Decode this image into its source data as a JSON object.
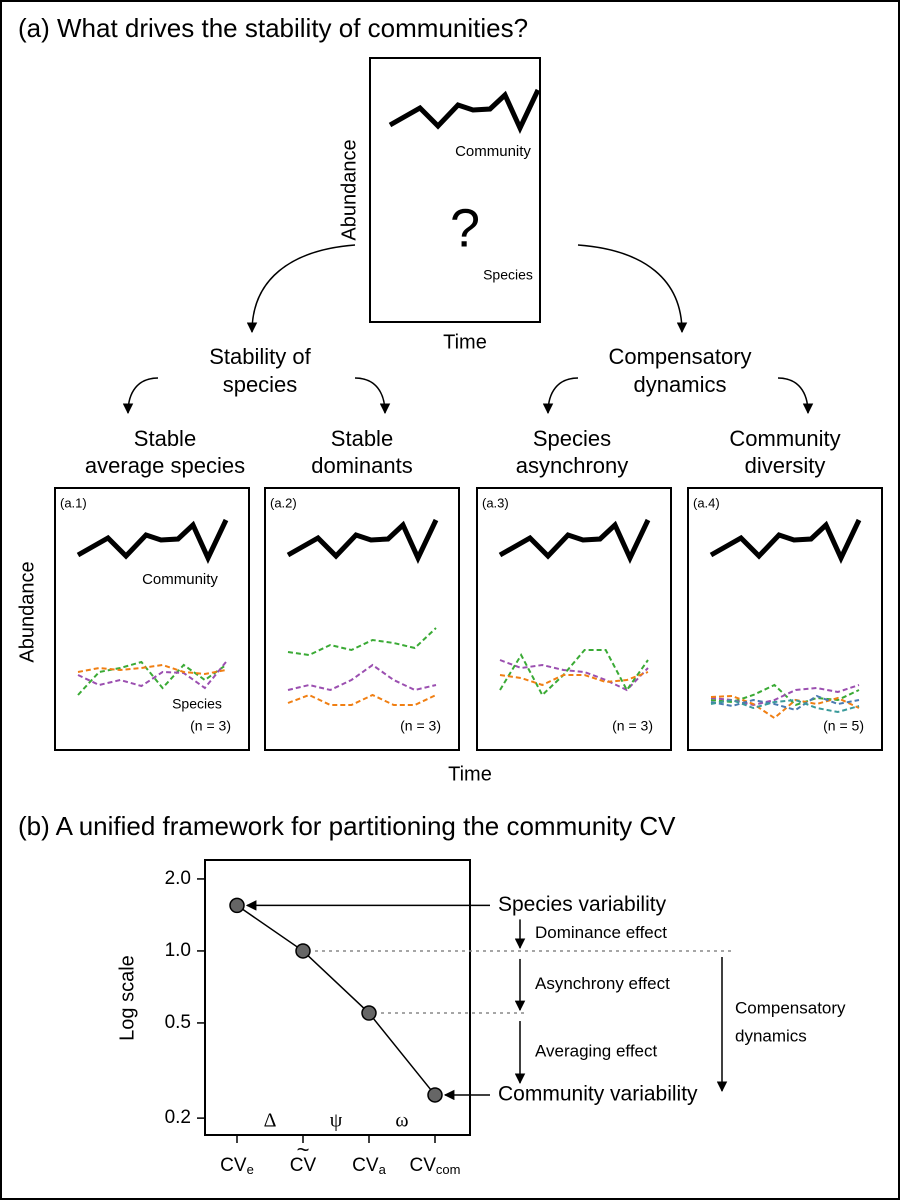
{
  "panel_a": {
    "title": "(a) What drives the stability of communities?",
    "overview": {
      "y_label": "Abundance",
      "x_label": "Time",
      "community_label": "Community",
      "question": "?",
      "species_label": "Species"
    },
    "branches": [
      {
        "lines": [
          "Stability of",
          "species"
        ],
        "children": [
          {
            "lines": [
              "Stable",
              "average species"
            ]
          },
          {
            "lines": [
              "Stable",
              "dominants"
            ]
          }
        ]
      },
      {
        "lines": [
          "Compensatory",
          "dynamics"
        ],
        "children": [
          {
            "lines": [
              "Species",
              "asynchrony"
            ]
          },
          {
            "lines": [
              "Community",
              "diversity"
            ]
          }
        ]
      }
    ],
    "panels": [
      {
        "tag": "(a.1)",
        "count": "(n = 3)",
        "community_label": "Community",
        "species_label": "Species"
      },
      {
        "tag": "(a.2)",
        "count": "(n = 3)"
      },
      {
        "tag": "(a.3)",
        "count": "(n = 3)"
      },
      {
        "tag": "(a.4)",
        "count": "(n = 5)"
      }
    ],
    "y_label": "Abundance",
    "x_label": "Time"
  },
  "chart_data": {
    "type": "line",
    "title": "(b) A unified framework for partitioning the community CV",
    "y_label": "Log scale",
    "log_scale": true,
    "categories": [
      {
        "base": "CV",
        "sub": "e"
      },
      {
        "base": "CV",
        "accent": "~"
      },
      {
        "base": "CV",
        "sub": "a"
      },
      {
        "base": "CV",
        "sub": "com"
      }
    ],
    "values": [
      1.55,
      1,
      0.55,
      0.25
    ],
    "color": "#666666",
    "ylim": [
      0.17,
      2.4
    ],
    "yticks": [
      {
        "value": 2,
        "label": "2.0"
      },
      {
        "value": 1,
        "label": "1.0"
      },
      0.5,
      0.2
    ],
    "between_labels": [
      "Δ",
      "ψ",
      "ω"
    ],
    "annotations": {
      "top": "Species variability",
      "bottom": "Community variability",
      "effects": [
        "Dominance effect",
        "Asynchrony effect",
        "Averaging effect"
      ],
      "compensatory": [
        "Compensatory",
        "dynamics"
      ]
    }
  }
}
